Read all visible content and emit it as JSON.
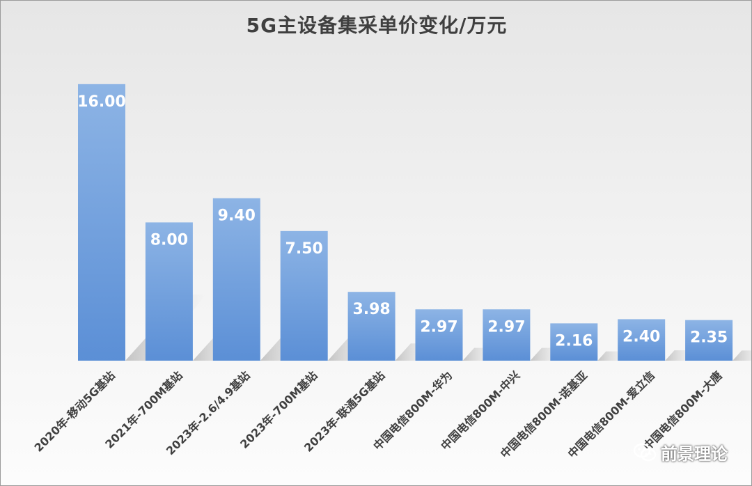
{
  "watermark": {
    "text": "前景理论",
    "icon": "wechat-icon"
  },
  "colors": {
    "bar_top": "#8db4e5",
    "bar_bottom": "#5b8fd6",
    "label": "#ffffff",
    "tick": "#404040"
  },
  "chart_data": {
    "type": "bar",
    "title": "5G主设备集采单价变化/万元",
    "xlabel": "",
    "ylabel": "",
    "ylim": [
      0,
      17
    ],
    "grid": false,
    "legend": "none",
    "categories": [
      "2020年-移动5G基站",
      "2021年-700M基站",
      "2023年-2.6/4.9基站",
      "2023年-700M基站",
      "2023年-联通5G基站",
      "中国电信800M-华为",
      "中国电信800M-中兴",
      "中国电信800M-诺基亚",
      "中国电信800M-爱立信",
      "中国电信800M-大唐"
    ],
    "values": [
      16.0,
      8.0,
      9.4,
      7.5,
      3.98,
      2.97,
      2.97,
      2.16,
      2.4,
      2.35
    ],
    "data_labels": [
      "16.00",
      "8.00",
      "9.40",
      "7.50",
      "3.98",
      "2.97",
      "2.97",
      "2.16",
      "2.40",
      "2.35"
    ]
  }
}
